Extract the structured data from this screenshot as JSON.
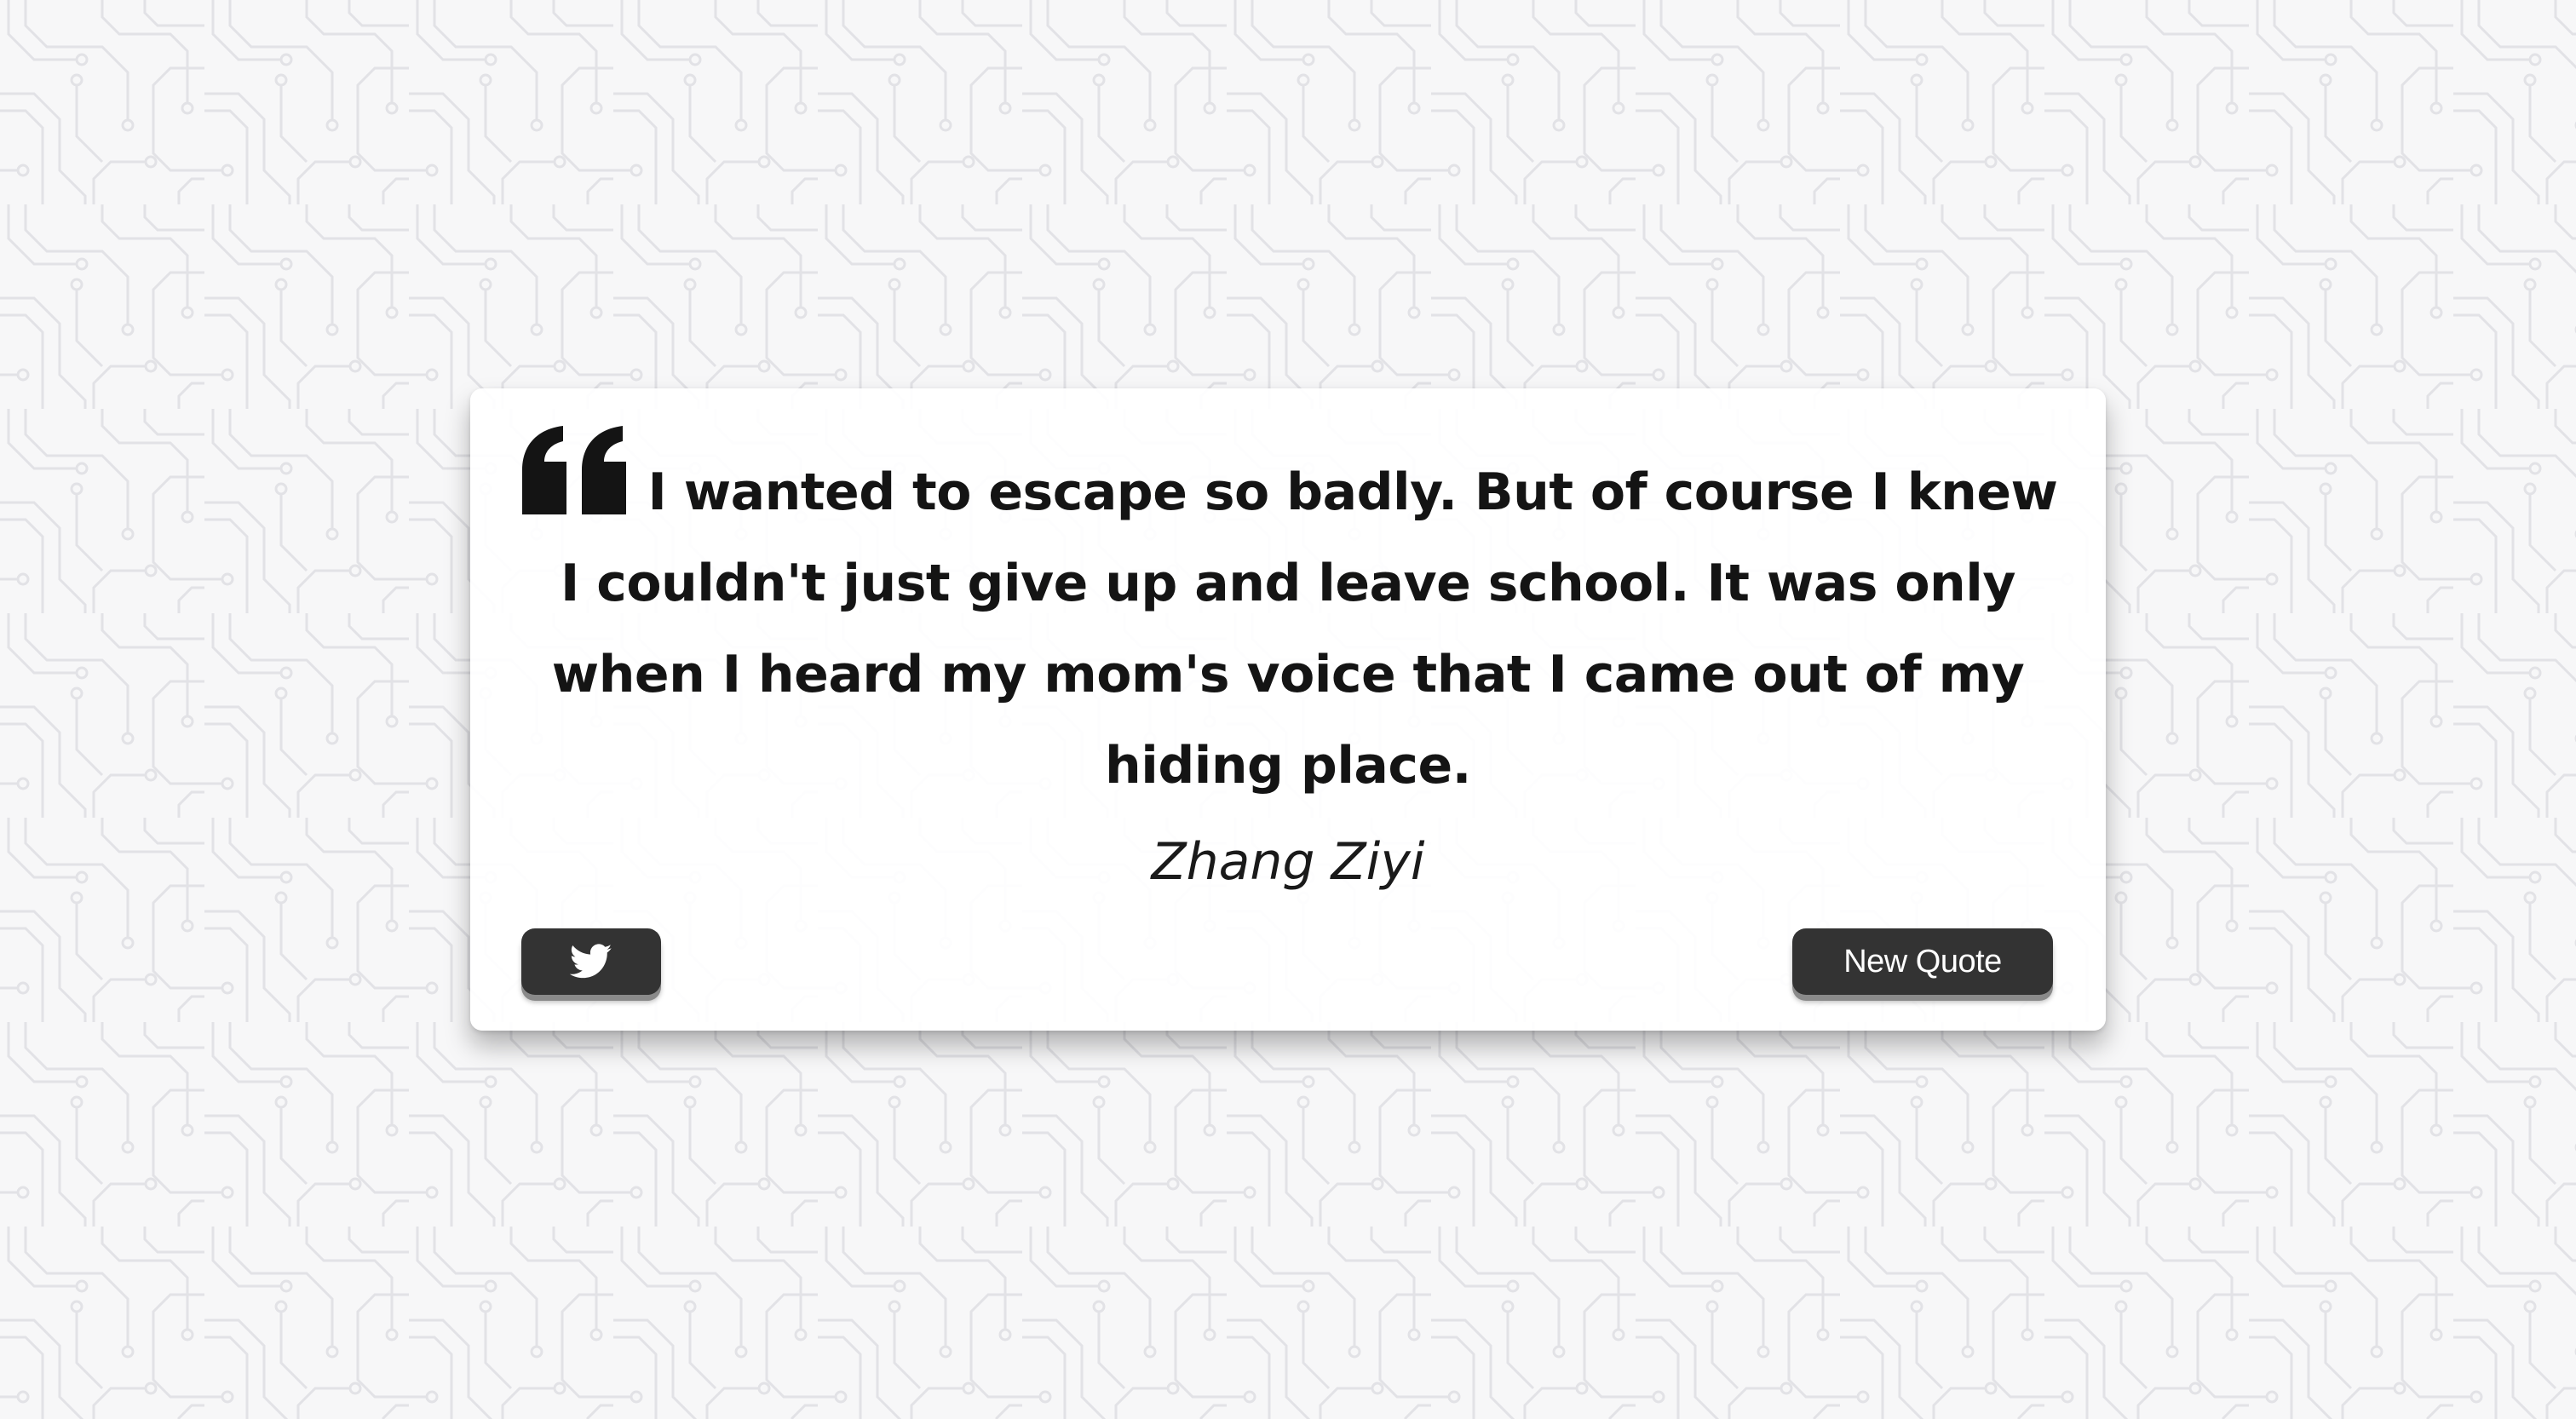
{
  "quote": {
    "text": "I wanted to escape so badly. But of course I knew I couldn't just give up and leave school. It was only when I heard my mom's voice that I came out of my hiding place.",
    "author": "Zhang Ziyi",
    "icon": "quote-left-icon"
  },
  "actions": {
    "tweet_icon": "twitter-icon",
    "new_quote_label": "New Quote"
  },
  "colors": {
    "background": "#f7f7f8",
    "pattern": "#e4e4e8",
    "card": "#ffffff",
    "button": "#333333",
    "button_text": "#ffffff",
    "text": "#141414"
  }
}
